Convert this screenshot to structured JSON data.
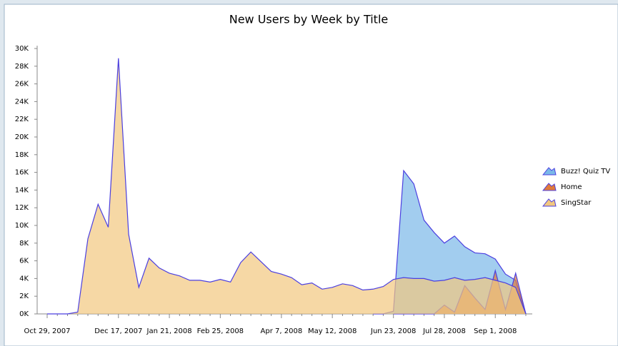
{
  "chart_data": {
    "type": "area",
    "title": "New Users by Week by Title",
    "categories": [
      "Oct 29, 2007",
      null,
      null,
      null,
      null,
      null,
      null,
      "Dec 17, 2007",
      null,
      null,
      null,
      null,
      "Jan 21, 2008",
      null,
      null,
      null,
      null,
      "Feb 25, 2008",
      null,
      null,
      null,
      null,
      null,
      "Apr 7, 2008",
      null,
      null,
      null,
      null,
      "May 12, 2008",
      null,
      null,
      null,
      null,
      null,
      "Jun 23, 2008",
      null,
      null,
      null,
      null,
      "Jul 28, 2008",
      null,
      null,
      null,
      null,
      "Sep 1, 2008",
      null,
      null,
      null
    ],
    "series": [
      {
        "name": "Buzz! Quiz TV",
        "color": "#7ab8e8",
        "values": [
          null,
          null,
          null,
          null,
          null,
          null,
          null,
          null,
          null,
          null,
          null,
          null,
          null,
          null,
          null,
          null,
          null,
          null,
          null,
          null,
          null,
          null,
          null,
          null,
          null,
          null,
          null,
          null,
          null,
          null,
          null,
          null,
          0,
          0,
          300,
          16200,
          14700,
          10600,
          9200,
          8000,
          8800,
          7600,
          6900,
          6800,
          6200,
          4500,
          3800,
          0
        ]
      },
      {
        "name": "Home",
        "color": "#e07a3a",
        "values": [
          null,
          null,
          null,
          null,
          null,
          null,
          null,
          null,
          null,
          null,
          null,
          null,
          null,
          null,
          null,
          null,
          null,
          null,
          null,
          null,
          null,
          null,
          null,
          null,
          null,
          null,
          null,
          null,
          null,
          null,
          null,
          null,
          null,
          null,
          0,
          0,
          0,
          0,
          0,
          1000,
          200,
          3200,
          1800,
          500,
          4900,
          500,
          4600,
          0
        ]
      },
      {
        "name": "SingStar",
        "color": "#f2c77f",
        "values": [
          0,
          0,
          0,
          200,
          8500,
          12400,
          9800,
          28900,
          9000,
          3000,
          6300,
          5200,
          4600,
          4300,
          3800,
          3800,
          3600,
          3900,
          3600,
          5800,
          7000,
          5900,
          4800,
          4500,
          4100,
          3300,
          3500,
          2800,
          3000,
          3400,
          3200,
          2700,
          2800,
          3100,
          3900,
          4100,
          4000,
          4000,
          3700,
          3800,
          4100,
          3800,
          3900,
          4100,
          3800,
          3500,
          3000,
          0
        ]
      }
    ],
    "line_color": "#4b3fe0",
    "ylim": [
      0,
      30000
    ],
    "yticks": [
      {
        "value": 0,
        "label": "0K"
      },
      {
        "value": 2000,
        "label": "2K"
      },
      {
        "value": 4000,
        "label": "4K"
      },
      {
        "value": 6000,
        "label": "6K"
      },
      {
        "value": 8000,
        "label": "8K"
      },
      {
        "value": 10000,
        "label": "10K"
      },
      {
        "value": 12000,
        "label": "12K"
      },
      {
        "value": 14000,
        "label": "14K"
      },
      {
        "value": 16000,
        "label": "16K"
      },
      {
        "value": 18000,
        "label": "18K"
      },
      {
        "value": 20000,
        "label": "20K"
      },
      {
        "value": 22000,
        "label": "22K"
      },
      {
        "value": 24000,
        "label": "24K"
      },
      {
        "value": 26000,
        "label": "26K"
      },
      {
        "value": 28000,
        "label": "28K"
      },
      {
        "value": 30000,
        "label": "30K"
      }
    ],
    "grid": false,
    "legend": "right"
  }
}
